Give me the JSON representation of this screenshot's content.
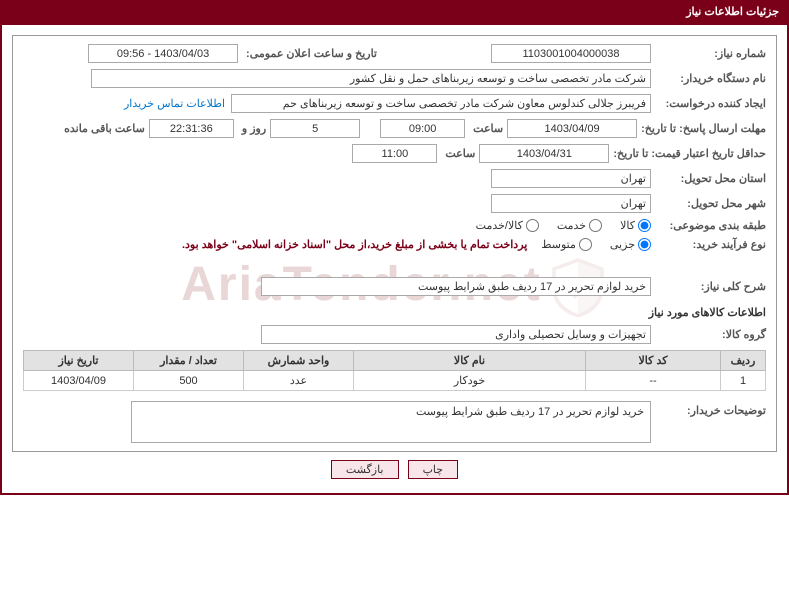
{
  "panel": {
    "title": "جزئیات اطلاعات نیاز"
  },
  "labels": {
    "need_no": "شماره نیاز:",
    "announce": "تاریخ و ساعت اعلان عمومی:",
    "buyer_org": "نام دستگاه خریدار:",
    "requester": "ایجاد کننده درخواست:",
    "deadline": "مهلت ارسال پاسخ: تا تاریخ:",
    "time": "ساعت",
    "day_and": "روز و",
    "remain": "ساعت باقی مانده",
    "validity": "حداقل تاریخ اعتبار قیمت: تا تاریخ:",
    "province": "استان محل تحویل:",
    "city": "شهر محل تحویل:",
    "subject_cat": "طبقه بندی موضوعی:",
    "purchase_type": "نوع فرآیند خرید:",
    "need_desc": "شرح کلی نیاز:",
    "goods_info": "اطلاعات کالاهای مورد نیاز",
    "goods_group": "گروه کالا:",
    "buyer_notes": "توضیحات خریدار:",
    "contact_link": "اطلاعات تماس خریدار"
  },
  "values": {
    "need_no": "1103001004000038",
    "announce": "1403/04/03 - 09:56",
    "buyer_org": "شرکت مادر تخصصی ساخت و توسعه زیربناهای حمل و نقل کشور",
    "requester": "فریبرز جلالی کندلوس معاون شرکت مادر تخصصی ساخت و توسعه زیربناهای حم",
    "deadline_date": "1403/04/09",
    "deadline_time": "09:00",
    "days": "5",
    "countdown": "22:31:36",
    "validity_date": "1403/04/31",
    "validity_time": "11:00",
    "province": "تهران",
    "city": "تهران",
    "goods_group": "تجهیزات و وسایل تحصیلی واداری",
    "need_desc": "خرید لوازم تحریر در 17 ردیف طبق شرایط پیوست",
    "buyer_notes": "خرید لوازم تحریر در 17 ردیف طبق شرایط پیوست"
  },
  "radios": {
    "subject_options": [
      "کالا",
      "خدمت",
      "کالا/خدمت"
    ],
    "subject_selected": 0,
    "purchase_options": [
      "جزیی",
      "متوسط"
    ],
    "purchase_selected": 0,
    "purchase_note": "پرداخت تمام یا بخشی از مبلغ خرید،از محل \"اسناد خزانه اسلامی\" خواهد بود."
  },
  "table": {
    "columns": [
      "ردیف",
      "کد کالا",
      "نام کالا",
      "واحد شمارش",
      "تعداد / مقدار",
      "تاریخ نیاز"
    ],
    "col_widths": [
      "45px",
      "135px",
      "auto",
      "110px",
      "110px",
      "110px"
    ],
    "rows": [
      [
        "1",
        "--",
        "خودکار",
        "عدد",
        "500",
        "1403/04/09"
      ]
    ]
  },
  "buttons": {
    "print": "چاپ",
    "back": "بازگشت"
  },
  "watermark": {
    "text": "AriaTender.net"
  },
  "colors": {
    "brand": "#7a0019",
    "link": "#0074c7",
    "border": "#999999",
    "th_bg": "#e2e2e2",
    "btn_bg": "#f9e6ea"
  }
}
